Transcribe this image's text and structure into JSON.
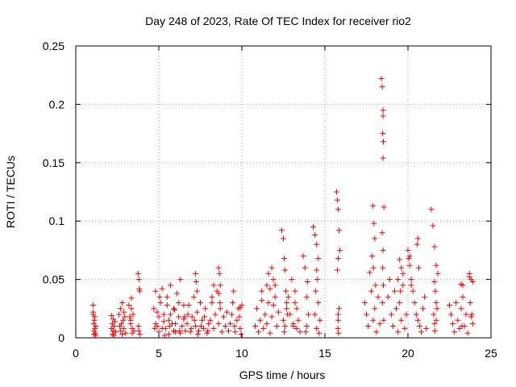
{
  "chart_data": {
    "type": "scatter",
    "title": "Day 248 of 2023, Rate Of TEC Index for receiver rio2",
    "xlabel": "GPS time / hours",
    "ylabel": "ROTI / TECUs",
    "xlim": [
      0,
      25
    ],
    "ylim": [
      0,
      0.25
    ],
    "xticks": [
      0,
      5,
      10,
      15,
      20,
      25
    ],
    "xtick_labels": [
      "0",
      "5",
      "10",
      "15",
      "20",
      "25"
    ],
    "yticks": [
      0,
      0.05,
      0.1,
      0.15,
      0.2,
      0.25
    ],
    "ytick_labels": [
      "0",
      "0.05",
      "0.1",
      "0.15",
      "0.2",
      "0.25"
    ],
    "grid": true,
    "marker": "+",
    "series": [
      {
        "name": "ROTI",
        "color": "#ff0000",
        "x": [
          1.05,
          1.05,
          1.08,
          1.1,
          1.1,
          1.12,
          1.15,
          1.15,
          1.18,
          1.2,
          1.2,
          1.05,
          2.15,
          2.2,
          2.25,
          2.3,
          2.2,
          2.25,
          2.3,
          2.15,
          2.35,
          2.4,
          2.6,
          2.7,
          2.75,
          2.8,
          2.9,
          2.95,
          3.0,
          2.7,
          2.85,
          2.9,
          2.65,
          2.8,
          3.2,
          3.3,
          3.35,
          3.4,
          3.45,
          3.3,
          3.4,
          3.25,
          3.5,
          3.35,
          3.75,
          3.8,
          3.82,
          3.85,
          3.78,
          3.8,
          3.85,
          4.7,
          4.8,
          4.9,
          5.0,
          5.1,
          5.2,
          5.3,
          5.4,
          5.5,
          5.6,
          5.7,
          5.8,
          5.9,
          6.0,
          6.1,
          6.2,
          6.3,
          6.4,
          6.5,
          6.6,
          4.8,
          4.9,
          5.0,
          5.2,
          5.3,
          5.5,
          5.6,
          5.7,
          5.9,
          6.0,
          6.2,
          6.3,
          6.5,
          4.75,
          5.05,
          5.35,
          5.65,
          5.95,
          6.25,
          6.55,
          6.7,
          6.8,
          6.9,
          7.0,
          7.1,
          7.2,
          7.3,
          7.4,
          7.5,
          7.6,
          7.7,
          7.8,
          7.9,
          8.0,
          6.75,
          6.95,
          7.15,
          7.35,
          7.55,
          7.75,
          7.95,
          7.2,
          7.25,
          7.3,
          8.1,
          8.2,
          8.3,
          8.4,
          8.5,
          8.6,
          8.7,
          8.8,
          8.9,
          9.0,
          9.1,
          9.2,
          8.6,
          8.65,
          8.7,
          8.62,
          8.68,
          8.2,
          8.3,
          9.3,
          9.4,
          9.5,
          9.6,
          9.7,
          9.8,
          9.9,
          10.0,
          9.45,
          9.55,
          9.85,
          9.95,
          9.9,
          10.8,
          10.9,
          11.0,
          11.1,
          11.2,
          11.3,
          11.4,
          11.5,
          11.6,
          11.7,
          11.8,
          11.9,
          12.0,
          12.1,
          12.2,
          11.2,
          11.5,
          11.8,
          11.9,
          12.0,
          11.6,
          11.7,
          12.4,
          12.5,
          12.55,
          12.6,
          12.65,
          12.7,
          12.75,
          12.6,
          12.55,
          12.5,
          12.7,
          12.8,
          12.9,
          13.0,
          13.1,
          13.2,
          13.3,
          13.4,
          13.5,
          13.2,
          13.3,
          13.1,
          13.7,
          13.8,
          13.9,
          14.0,
          13.9,
          13.85,
          13.95,
          14.3,
          14.4,
          14.5,
          14.6,
          14.5,
          14.55,
          14.45,
          14.6,
          14.7,
          14.5,
          14.4,
          14.65,
          15.7,
          15.75,
          15.8,
          15.85,
          15.9,
          15.8,
          15.75,
          15.85,
          15.8,
          15.78,
          15.82,
          15.8,
          17.4,
          17.5,
          17.6,
          17.7,
          17.8,
          17.9,
          18.0,
          18.1,
          18.2,
          18.3,
          17.9,
          17.95,
          18.0,
          17.85,
          17.92,
          18.05,
          18.4,
          18.45,
          18.5,
          18.5,
          18.48,
          18.52,
          18.5,
          18.55,
          18.45,
          18.5,
          18.48,
          18.52,
          18.46,
          18.54,
          18.8,
          18.9,
          19.0,
          19.1,
          19.2,
          19.3,
          19.4,
          19.5,
          19.6,
          19.7,
          19.8,
          19.9,
          19.5,
          19.6,
          19.7,
          19.4,
          19.55,
          20.0,
          20.1,
          20.2,
          20.3,
          20.4,
          20.5,
          20.6,
          20.7,
          20.8,
          20.9,
          21.0,
          21.1,
          20.05,
          20.1,
          20.55,
          20.6,
          20.65,
          20.2,
          21.4,
          21.5,
          21.6,
          21.7,
          21.8,
          21.6,
          21.65,
          21.7,
          21.55,
          21.6,
          21.62,
          21.75,
          21.7,
          22.5,
          22.6,
          22.7,
          22.8,
          22.9,
          23.0,
          23.1,
          23.2,
          23.3,
          23.4,
          23.5,
          23.6,
          23.7,
          23.8,
          23.9,
          23.2,
          23.3,
          23.7,
          23.8,
          23.9,
          23.75,
          23.85,
          23.25
        ],
        "y": [
          0.028,
          0.02,
          0.012,
          0.006,
          0.003,
          0.015,
          0.008,
          0.018,
          0.004,
          0.01,
          0.002,
          0.022,
          0.019,
          0.012,
          0.006,
          0.01,
          0.003,
          0.016,
          0.002,
          0.008,
          0.014,
          0.005,
          0.02,
          0.025,
          0.012,
          0.03,
          0.008,
          0.018,
          0.004,
          0.006,
          0.015,
          0.022,
          0.01,
          0.003,
          0.028,
          0.015,
          0.034,
          0.008,
          0.02,
          0.012,
          0.004,
          0.018,
          0.006,
          0.025,
          0.055,
          0.05,
          0.042,
          0.04,
          0.01,
          0.006,
          0.003,
          0.025,
          0.04,
          0.01,
          0.005,
          0.03,
          0.042,
          0.02,
          0.008,
          0.035,
          0.015,
          0.045,
          0.012,
          0.025,
          0.005,
          0.038,
          0.018,
          0.05,
          0.01,
          0.028,
          0.006,
          0.012,
          0.022,
          0.018,
          0.008,
          0.014,
          0.028,
          0.003,
          0.02,
          0.006,
          0.012,
          0.03,
          0.004,
          0.016,
          0.008,
          0.035,
          0.002,
          0.01,
          0.024,
          0.006,
          0.018,
          0.012,
          0.028,
          0.005,
          0.018,
          0.035,
          0.01,
          0.022,
          0.006,
          0.03,
          0.015,
          0.008,
          0.025,
          0.004,
          0.012,
          0.02,
          0.008,
          0.015,
          0.003,
          0.01,
          0.018,
          0.006,
          0.055,
          0.048,
          0.04,
          0.015,
          0.03,
          0.008,
          0.02,
          0.04,
          0.012,
          0.025,
          0.005,
          0.018,
          0.01,
          0.022,
          0.006,
          0.06,
          0.055,
          0.045,
          0.038,
          0.03,
          0.035,
          0.045,
          0.012,
          0.02,
          0.04,
          0.005,
          0.015,
          0.025,
          0.008,
          0.028,
          0.03,
          0.01,
          0.018,
          0.003,
          0.026,
          0.01,
          0.025,
          0.005,
          0.015,
          0.032,
          0.008,
          0.02,
          0.012,
          0.03,
          0.004,
          0.018,
          0.028,
          0.045,
          0.01,
          0.022,
          0.04,
          0.045,
          0.06,
          0.05,
          0.035,
          0.055,
          0.042,
          0.092,
          0.085,
          0.068,
          0.058,
          0.04,
          0.03,
          0.02,
          0.01,
          0.005,
          0.015,
          0.025,
          0.035,
          0.02,
          0.05,
          0.01,
          0.04,
          0.025,
          0.015,
          0.005,
          0.03,
          0.008,
          0.012,
          0.07,
          0.06,
          0.035,
          0.02,
          0.01,
          0.005,
          0.048,
          0.095,
          0.088,
          0.08,
          0.068,
          0.058,
          0.05,
          0.04,
          0.03,
          0.015,
          0.008,
          0.02,
          0.004,
          0.125,
          0.118,
          0.11,
          0.092,
          0.075,
          0.068,
          0.058,
          0.025,
          0.015,
          0.008,
          0.004,
          0.02,
          0.03,
          0.02,
          0.01,
          0.056,
          0.04,
          0.015,
          0.025,
          0.005,
          0.035,
          0.012,
          0.113,
          0.098,
          0.085,
          0.07,
          0.06,
          0.045,
          0.222,
          0.215,
          0.195,
          0.19,
          0.175,
          0.168,
          0.154,
          0.112,
          0.09,
          0.075,
          0.06,
          0.045,
          0.03,
          0.015,
          0.035,
          0.05,
          0.02,
          0.01,
          0.04,
          0.025,
          0.005,
          0.03,
          0.015,
          0.045,
          0.008,
          0.02,
          0.067,
          0.06,
          0.055,
          0.05,
          0.04,
          0.075,
          0.062,
          0.05,
          0.04,
          0.03,
          0.02,
          0.015,
          0.01,
          0.005,
          0.025,
          0.035,
          0.008,
          0.068,
          0.07,
          0.08,
          0.085,
          0.06,
          0.045,
          0.11,
          0.096,
          0.078,
          0.062,
          0.055,
          0.048,
          0.04,
          0.03,
          0.02,
          0.012,
          0.006,
          0.025,
          0.015,
          0.028,
          0.02,
          0.012,
          0.005,
          0.03,
          0.015,
          0.008,
          0.025,
          0.045,
          0.01,
          0.02,
          0.004,
          0.055,
          0.018,
          0.012,
          0.046,
          0.035,
          0.052,
          0.05,
          0.048,
          0.03,
          0.02,
          0.01
        ]
      }
    ]
  }
}
